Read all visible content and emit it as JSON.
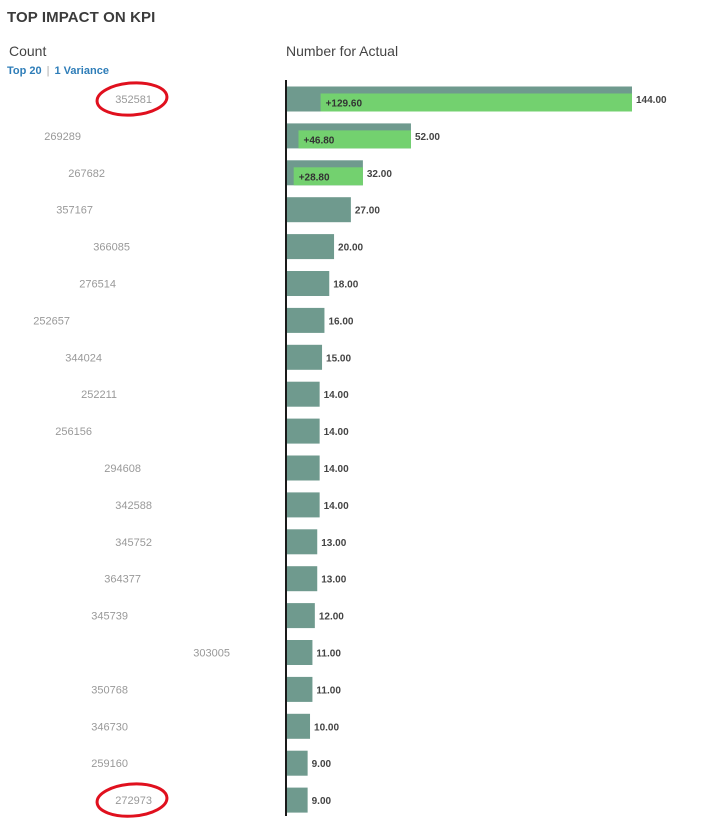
{
  "header": {
    "title": "TOP IMPACT ON KPI",
    "count_label": "Count",
    "measure_label": "Number for Actual",
    "top_link": "Top 20",
    "variance_link": "1 Variance"
  },
  "colors": {
    "bar": "#6f9a8e",
    "variance": "#73d16f",
    "axis": "#1a1a1a",
    "link": "#2e7db8",
    "annotation": "#e0101e"
  },
  "chart_data": {
    "type": "bar",
    "orientation": "horizontal",
    "categories": [
      "352581",
      "269289",
      "267682",
      "357167",
      "366085",
      "276514",
      "252657",
      "344024",
      "252211",
      "256156",
      "294608",
      "342588",
      "345752",
      "364377",
      "345739",
      "303005",
      "350768",
      "346730",
      "259160",
      "272973"
    ],
    "series": [
      {
        "name": "Number for Actual",
        "values": [
          144,
          52,
          32,
          27,
          20,
          18,
          16,
          15,
          14,
          14,
          14,
          14,
          13,
          13,
          12,
          11,
          11,
          10,
          9,
          9
        ],
        "labels": [
          "144.00",
          "52.00",
          "32.00",
          "27.00",
          "20.00",
          "18.00",
          "16.00",
          "15.00",
          "14.00",
          "14.00",
          "14.00",
          "14.00",
          "13.00",
          "13.00",
          "12.00",
          "11.00",
          "11.00",
          "10.00",
          "9.00",
          "9.00"
        ]
      },
      {
        "name": "Variance",
        "values": [
          129.6,
          46.8,
          28.8,
          null,
          null,
          null,
          null,
          null,
          null,
          null,
          null,
          null,
          null,
          null,
          null,
          null,
          null,
          null,
          null,
          null
        ],
        "labels": [
          "+129.60",
          "+46.80",
          "+28.80",
          "",
          "",
          "",
          "",
          "",
          "",
          "",
          "",
          "",
          "",
          "",
          "",
          "",
          "",
          "",
          "",
          ""
        ]
      }
    ],
    "xlim": [
      0,
      144
    ],
    "circled_categories": [
      "352581",
      "272973"
    ]
  }
}
